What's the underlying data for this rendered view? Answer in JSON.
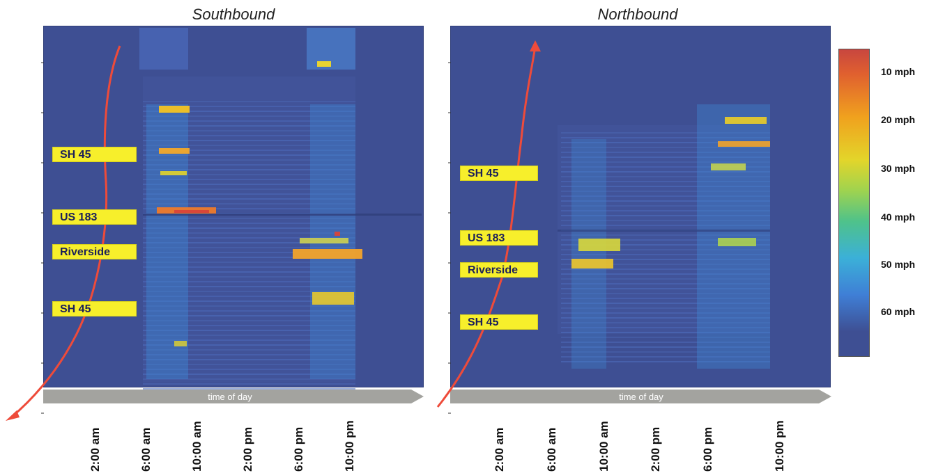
{
  "chart_data": {
    "type": "heatmap",
    "panels": [
      {
        "title": "Southbound",
        "axis_label": "time of day",
        "x_ticks": [
          "2:00 am",
          "6:00 am",
          "10:00 am",
          "2:00 pm",
          "6:00 pm",
          "10:00 pm"
        ],
        "segment_labels": [
          "SH 45",
          "US 183",
          "Riverside",
          "SH 45"
        ]
      },
      {
        "title": "Northbound",
        "axis_label": "time of day",
        "x_ticks": [
          "2:00 am",
          "6:00 am",
          "10:00 am",
          "2:00 pm",
          "6:00 pm",
          "10:00 pm"
        ],
        "segment_labels": [
          "SH 45",
          "US 183",
          "Riverside",
          "SH 45"
        ]
      }
    ],
    "colorbar": {
      "labels": [
        "10 mph",
        "20 mph",
        "30 mph",
        "40 mph",
        "50 mph",
        "60 mph"
      ],
      "values": [
        10,
        20,
        30,
        40,
        50,
        60
      ],
      "colors": [
        "#c8463f",
        "#f0a11e",
        "#d2d83a",
        "#4fc28a",
        "#3f7fd6",
        "#3e4f93"
      ]
    }
  }
}
